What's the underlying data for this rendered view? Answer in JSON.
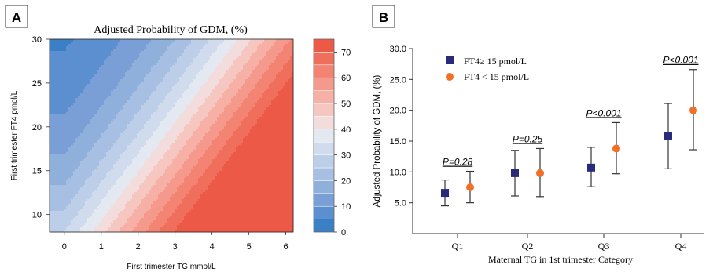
{
  "chart_data": [
    {
      "panel_label": "A",
      "type": "heatmap",
      "title": "Adjusted Probability  of GDM, (%)",
      "xlabel": "First trimester TG mmol/L",
      "ylabel": "First trimester FT4 pmol/L",
      "xlim": [
        -0.4,
        6.2
      ],
      "ylim": [
        8,
        30
      ],
      "x_ticks": [
        0,
        1,
        2,
        3,
        4,
        5,
        6
      ],
      "y_ticks": [
        10,
        15,
        20,
        25,
        30
      ],
      "colorbar": {
        "ticks": [
          0,
          10,
          20,
          30,
          40,
          50,
          60,
          70
        ],
        "range": [
          0,
          75
        ],
        "levels": [
          0,
          5,
          10,
          15,
          20,
          25,
          30,
          35,
          40,
          45,
          50,
          55,
          60,
          65,
          70,
          75
        ],
        "colors": [
          "#3b7fc4",
          "#5b8fcf",
          "#7a9fd6",
          "#90b0dc",
          "#a6bfe2",
          "#bccee8",
          "#d0dcee",
          "#e4e8f0",
          "#f3dcdc",
          "#f6c6c0",
          "#f6b0a6",
          "#f5998c",
          "#f38373",
          "#f06e5c",
          "#ec5946"
        ]
      }
    },
    {
      "panel_label": "B",
      "type": "scatter",
      "xlabel": "Maternal TG in 1st trimester Category",
      "ylabel": "Adjusted Probability of GDM, (%)",
      "categories": [
        "Q1",
        "Q2",
        "Q3",
        "Q4"
      ],
      "ylim": [
        0,
        30
      ],
      "y_ticks": [
        "5.0",
        "10.0",
        "15.0",
        "20.0",
        "25.0",
        "30.0"
      ],
      "series": [
        {
          "name": "FT4≥  15 pmol/L",
          "marker": "square",
          "color": "#2a2a7a",
          "values": [
            6.6,
            9.8,
            10.7,
            15.8
          ],
          "lower": [
            4.5,
            6.1,
            7.6,
            10.5
          ],
          "upper": [
            8.7,
            13.5,
            14.0,
            21.1
          ]
        },
        {
          "name": "FT4 < 15 pmol/L",
          "marker": "circle",
          "color": "#f07028",
          "values": [
            7.5,
            9.8,
            13.8,
            20.0
          ],
          "lower": [
            5.0,
            6.0,
            9.7,
            13.6
          ],
          "upper": [
            10.1,
            13.8,
            18.0,
            26.6
          ]
        }
      ],
      "annotations": [
        "P=0.28",
        "P=0.25",
        "P<0.001",
        "P<0.001"
      ],
      "legend_position": "top-left"
    }
  ]
}
